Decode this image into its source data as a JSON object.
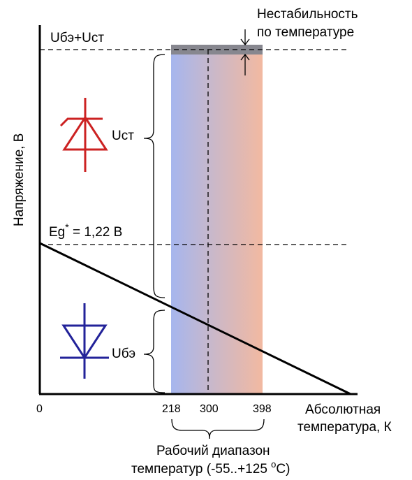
{
  "labels": {
    "instability_line1": "Нестабильность",
    "instability_line2": "по температуре",
    "ube_ust": "Uбэ+Uст",
    "ust": "Uст",
    "ube": "Uбэ",
    "eg_main": "Eg",
    "eg_star": "*",
    "eg_value": " = 1,22 В",
    "y_axis": "Напряжение, В",
    "x_axis_line1": "Абсолютная",
    "x_axis_line2": "температура, К",
    "tick_0": "0",
    "tick_218": "218",
    "tick_300": "300",
    "tick_398": "398",
    "range_line1": "Рабочий диапазон",
    "range_line2_a": "температур (-55..+125 ",
    "range_line2_o": "o",
    "range_line2_b": "С)"
  },
  "colors": {
    "band_left": "#a6b6ee",
    "band_right": "#f2b9a1",
    "band_top": "#87878f",
    "zener": "#cc2222",
    "diode": "#222299",
    "line": "#000000"
  },
  "icons": {
    "zener": "zener-diode-icon",
    "diode": "diode-icon"
  }
}
